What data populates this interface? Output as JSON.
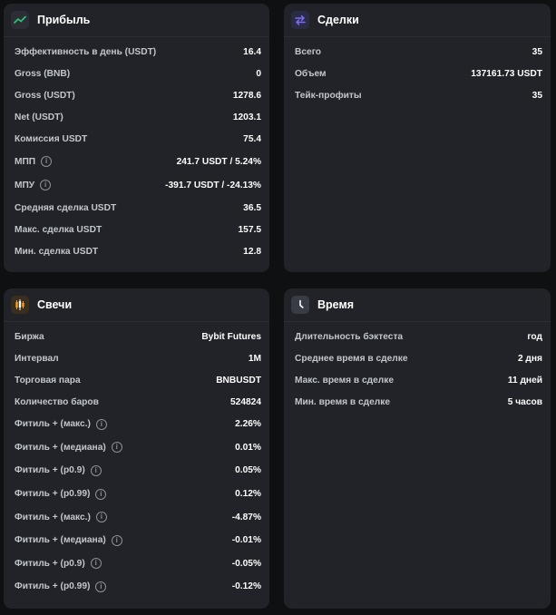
{
  "profit": {
    "title": "Прибыль",
    "rows": [
      {
        "label": "Эффективность в день (USDT)",
        "value": "16.4"
      },
      {
        "label": "Gross (BNB)",
        "value": "0"
      },
      {
        "label": "Gross (USDT)",
        "value": "1278.6"
      },
      {
        "label": "Net (USDT)",
        "value": "1203.1"
      },
      {
        "label": "Комиссия USDT",
        "value": "75.4"
      },
      {
        "label": "МПП",
        "value": "241.7 USDT / 5.24%",
        "info": true
      },
      {
        "label": "МПУ",
        "value": "-391.7 USDT / -24.13%",
        "info": true
      },
      {
        "label": "Средняя сделка USDT",
        "value": "36.5"
      },
      {
        "label": "Макс. сделка USDT",
        "value": "157.5"
      },
      {
        "label": "Мин. сделка USDT",
        "value": "12.8"
      }
    ]
  },
  "deals": {
    "title": "Сделки",
    "rows": [
      {
        "label": "Всего",
        "value": "35"
      },
      {
        "label": "Объем",
        "value": "137161.73 USDT"
      },
      {
        "label": "Тейк-профиты",
        "value": "35"
      }
    ]
  },
  "candles": {
    "title": "Свечи",
    "rows": [
      {
        "label": "Биржа",
        "value": "Bybit Futures"
      },
      {
        "label": "Интервал",
        "value": "1M"
      },
      {
        "label": "Торговая пара",
        "value": "BNBUSDT"
      },
      {
        "label": "Количество баров",
        "value": "524824"
      },
      {
        "label": "Фитиль + (макс.)",
        "value": "2.26%",
        "info": true
      },
      {
        "label": "Фитиль + (медиана)",
        "value": "0.01%",
        "info": true
      },
      {
        "label": "Фитиль + (p0.9)",
        "value": "0.05%",
        "info": true
      },
      {
        "label": "Фитиль + (p0.99)",
        "value": "0.12%",
        "info": true
      },
      {
        "label": "Фитиль + (макс.)",
        "value": "-4.87%",
        "info": true
      },
      {
        "label": "Фитиль + (медиана)",
        "value": "-0.01%",
        "info": true
      },
      {
        "label": "Фитиль + (p0.9)",
        "value": "-0.05%",
        "info": true
      },
      {
        "label": "Фитиль + (p0.99)",
        "value": "-0.12%",
        "info": true
      }
    ]
  },
  "time": {
    "title": "Время",
    "rows": [
      {
        "label": "Длительность бэктеста",
        "value": "год"
      },
      {
        "label": "Среднее время в сделке",
        "value": "2 дня"
      },
      {
        "label": "Макс. время в сделке",
        "value": "11 дней"
      },
      {
        "label": "Мин. время в сделке",
        "value": "5 часов"
      }
    ]
  },
  "info_glyph": "i",
  "icons": {
    "profit": "trend-up-icon",
    "deals": "swap-arrows-icon",
    "candles": "candles-icon",
    "time": "clock-icon"
  },
  "colors": {
    "background": "#0f1012",
    "card": "#212328",
    "accent_green": "#2fc27a",
    "accent_purple": "#7b6cf6",
    "accent_orange": "#f0a41c"
  }
}
